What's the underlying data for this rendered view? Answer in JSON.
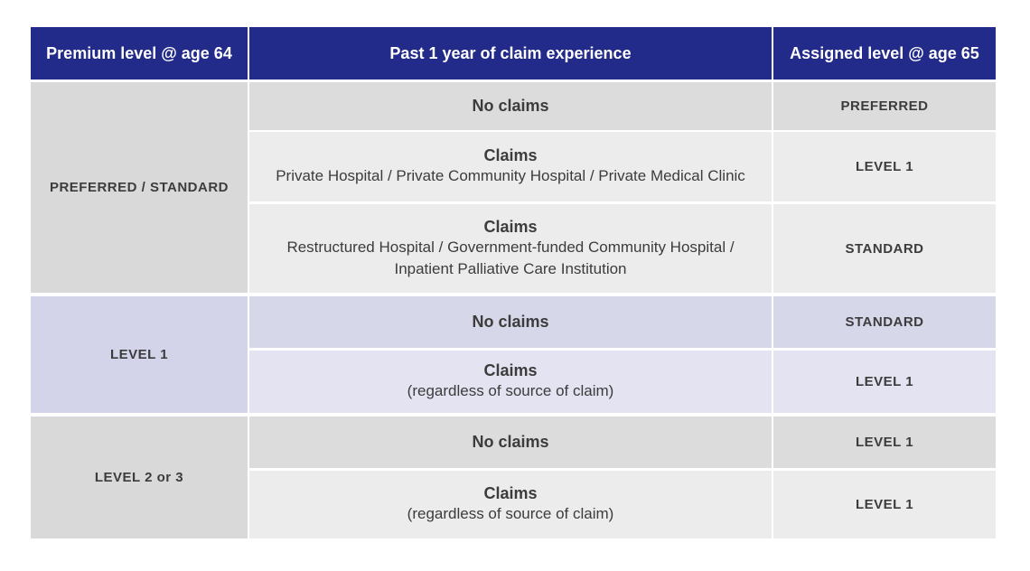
{
  "header": {
    "col1": "Premium level @ age 64",
    "col2": "Past 1 year of claim experience",
    "col3": "Assigned level @ age 65"
  },
  "groups": [
    {
      "level": "PREFERRED / STANDARD",
      "rows": [
        {
          "claim_title": "No claims",
          "claim_detail": "",
          "assigned": "PREFERRED"
        },
        {
          "claim_title": "Claims",
          "claim_detail": "Private Hospital / Private Community Hospital / Private Medical Clinic",
          "assigned": "LEVEL 1"
        },
        {
          "claim_title": "Claims",
          "claim_detail": "Restructured Hospital / Government-funded Community Hospital /",
          "claim_detail2": "Inpatient Palliative Care Institution",
          "assigned": "STANDARD"
        }
      ]
    },
    {
      "level": "LEVEL 1",
      "rows": [
        {
          "claim_title": "No claims",
          "claim_detail": "",
          "assigned": "STANDARD"
        },
        {
          "claim_title": "Claims",
          "claim_detail": "(regardless of source of claim)",
          "assigned": "LEVEL 1"
        }
      ]
    },
    {
      "level": "LEVEL 2 or 3",
      "rows": [
        {
          "claim_title": "No claims",
          "claim_detail": "",
          "assigned": "LEVEL 1"
        },
        {
          "claim_title": "Claims",
          "claim_detail": "(regardless of source of claim)",
          "assigned": "LEVEL 1"
        }
      ]
    }
  ]
}
